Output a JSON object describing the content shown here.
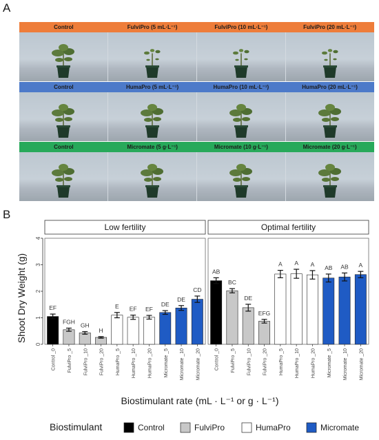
{
  "panel_a": {
    "letter": "A",
    "rows": [
      {
        "color": "#ee7d3a",
        "labels": [
          "Control",
          "FulviPro (5 mL·L⁻¹)",
          "FulviPro (10 mL·L⁻¹)",
          "FulviPro (20 mL·L⁻¹)"
        ]
      },
      {
        "color": "#4d7ac9",
        "labels": [
          "Control",
          "HumaPro (5 mL·L⁻¹)",
          "HumaPro (10 mL·L⁻¹)",
          "HumaPro (20 mL·L⁻¹)"
        ]
      },
      {
        "color": "#27a95a",
        "labels": [
          "Control",
          "Micromate (5 g·L⁻¹)",
          "Micromate (10 g·L⁻¹)",
          "Micromate (20 g·L⁻¹)"
        ]
      }
    ]
  },
  "panel_b": {
    "letter": "B"
  },
  "chart_data": {
    "type": "bar",
    "ylabel": "Shoot Dry Weight (g)",
    "xlabel": "Biostimulant rate (mL · L⁻¹ or g · L⁻¹)",
    "ylim": [
      0,
      4
    ],
    "yticks": [
      "0",
      "1",
      "2",
      "3",
      "4"
    ],
    "categories": [
      "Control _0",
      "FulviPro _5",
      "FulviPro _10",
      "FulviPro _20",
      "HumaPro _5",
      "HumaPro _10",
      "HumaPro _20",
      "Micromate _5",
      "Micromate _10",
      "Micromate _20"
    ],
    "category_groups": [
      "Control",
      "FulviPro",
      "FulviPro",
      "FulviPro",
      "HumaPro",
      "HumaPro",
      "HumaPro",
      "Micromate",
      "Micromate",
      "Micromate"
    ],
    "legend": {
      "title": "Biostimulant",
      "entries": [
        {
          "name": "Control",
          "color": "#000000"
        },
        {
          "name": "FulviPro",
          "color": "#c8c8c8"
        },
        {
          "name": "HumaPro",
          "color": "#ffffff"
        },
        {
          "name": "Micromate",
          "color": "#1f5bc4"
        }
      ]
    },
    "facets": [
      {
        "title": "Low fertility",
        "values": [
          1.05,
          0.55,
          0.43,
          0.26,
          1.1,
          1.02,
          1.02,
          1.2,
          1.37,
          1.7
        ],
        "errors": [
          0.09,
          0.06,
          0.05,
          0.03,
          0.1,
          0.08,
          0.07,
          0.07,
          0.09,
          0.12
        ],
        "letters": [
          "EF",
          "FGH",
          "GH",
          "H",
          "E",
          "EF",
          "EF",
          "DE",
          "DE",
          "CD"
        ]
      },
      {
        "title": "Optimal fertility",
        "values": [
          2.4,
          2.02,
          1.38,
          0.87,
          2.65,
          2.66,
          2.62,
          2.5,
          2.54,
          2.63
        ],
        "errors": [
          0.11,
          0.08,
          0.13,
          0.07,
          0.14,
          0.17,
          0.16,
          0.15,
          0.15,
          0.12
        ],
        "letters": [
          "AB",
          "BC",
          "DE",
          "EFG",
          "A",
          "A",
          "A",
          "AB",
          "AB",
          "A"
        ]
      }
    ]
  }
}
